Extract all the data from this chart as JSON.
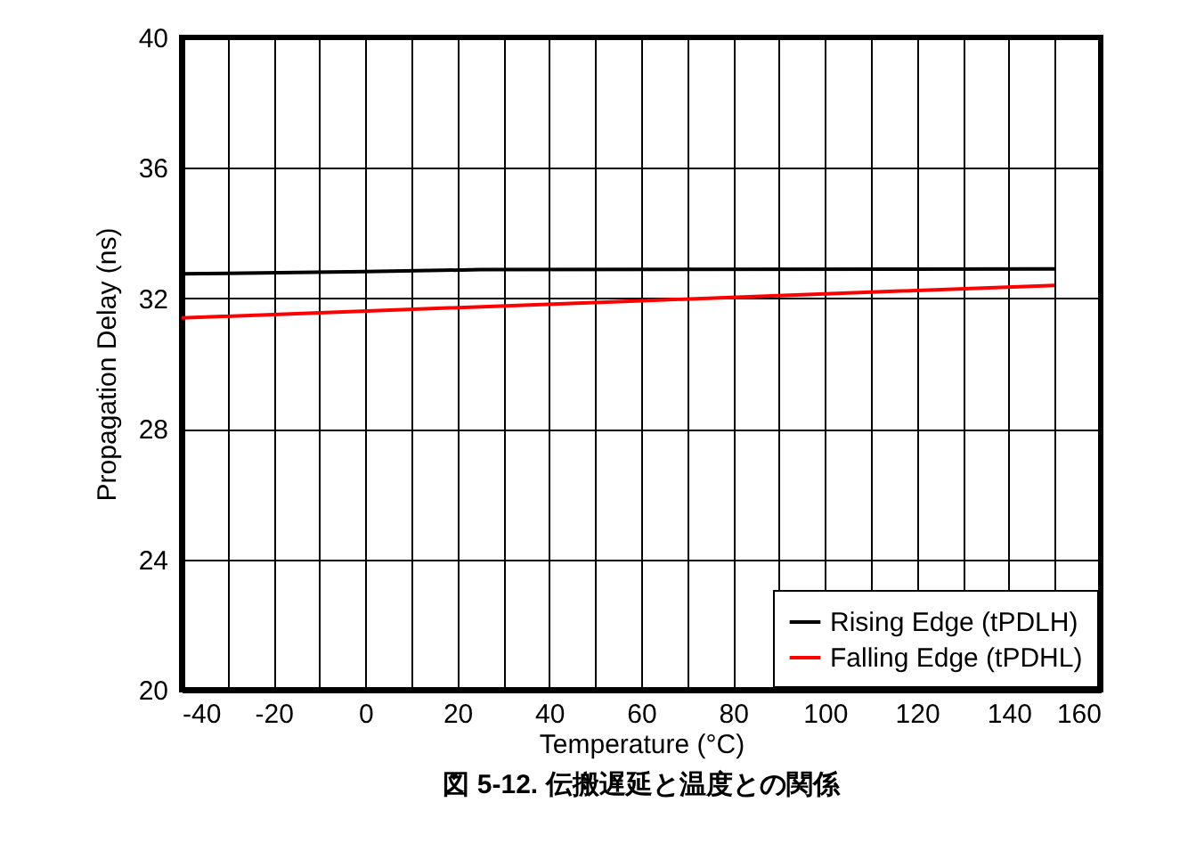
{
  "chart_data": {
    "type": "line",
    "title": "図 5-12. 伝搬遅延と温度との関係",
    "xlabel": "Temperature (°C)",
    "ylabel": "Propagation Delay (ns)",
    "xlim": [
      -40,
      160
    ],
    "xticks": [
      -40,
      {
        "value": -30,
        "label": null
      },
      -20,
      {
        "value": -10,
        "label": null
      },
      0,
      {
        "value": 10,
        "label": null
      },
      20,
      {
        "value": 30,
        "label": null
      },
      40,
      {
        "value": 50,
        "label": null
      },
      60,
      {
        "value": 70,
        "label": null
      },
      80,
      {
        "value": 90,
        "label": null
      },
      100,
      {
        "value": 110,
        "label": null
      },
      120,
      {
        "value": 130,
        "label": null
      },
      140,
      {
        "value": 150,
        "label": null
      },
      160
    ],
    "ylim": [
      20,
      40
    ],
    "yticks": [
      20,
      24,
      28,
      32,
      36,
      40
    ],
    "grid": true,
    "legend": "bottom right",
    "marker": "none",
    "line_style": "solid",
    "series": [
      {
        "name": "Rising Edge (tPDLH)",
        "color": "#000000",
        "x": [
          -40,
          0,
          25,
          150
        ],
        "values": [
          32.75,
          32.82,
          32.88,
          32.9
        ]
      },
      {
        "name": "Falling Edge (tPDHL)",
        "color": "#ff0000",
        "x": [
          -40,
          55,
          150
        ],
        "values": [
          31.4,
          31.9,
          32.4
        ]
      }
    ]
  }
}
